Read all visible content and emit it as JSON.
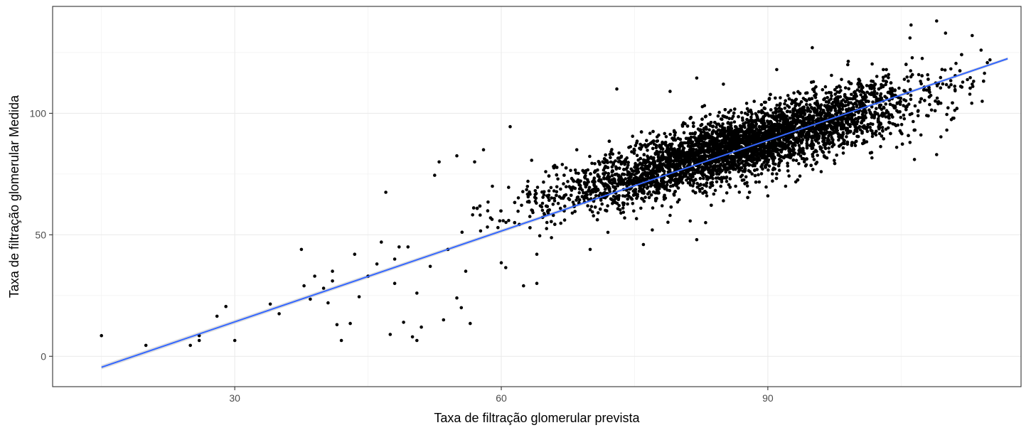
{
  "chart_data": {
    "type": "scatter",
    "title": "",
    "xlabel": "Taxa de filtração glomerular prevista",
    "ylabel": "Taxa de filtração glomerular Medida",
    "xlim": [
      9.5,
      118.5
    ],
    "ylim": [
      -12.5,
      144
    ],
    "x_ticks": [
      30,
      60,
      90
    ],
    "x_tick_labels": [
      "30",
      "60",
      "90"
    ],
    "y_ticks": [
      0,
      50,
      100
    ],
    "y_tick_labels": [
      "0",
      "50",
      "100"
    ],
    "x_minor_ticks": [
      15,
      45,
      75,
      105
    ],
    "y_minor_ticks": [
      25,
      75,
      125
    ],
    "grid": true,
    "legend": "none",
    "series": [
      {
        "kind": "points",
        "color": "#000000",
        "points": [
          [
            15,
            8.5
          ],
          [
            20,
            4.5
          ],
          [
            25,
            4.5
          ],
          [
            26,
            6.5
          ],
          [
            26,
            8.5
          ],
          [
            28,
            16.5
          ],
          [
            29,
            20.5
          ],
          [
            30,
            6.5
          ],
          [
            34,
            21.5
          ],
          [
            35,
            17.5
          ],
          [
            37.5,
            44
          ],
          [
            37.8,
            29
          ],
          [
            38.5,
            23.5
          ],
          [
            39,
            33
          ],
          [
            40,
            28
          ],
          [
            40.5,
            22
          ],
          [
            41,
            31
          ],
          [
            41,
            35
          ],
          [
            41.5,
            13
          ],
          [
            42,
            6.5
          ],
          [
            43,
            13.5
          ],
          [
            43.5,
            42
          ],
          [
            44,
            24.5
          ],
          [
            45,
            33
          ],
          [
            46,
            38
          ],
          [
            46.5,
            47
          ],
          [
            47,
            67.5
          ],
          [
            47.5,
            9
          ],
          [
            48,
            40
          ],
          [
            48,
            30
          ],
          [
            48.5,
            45
          ],
          [
            49,
            14
          ],
          [
            49.5,
            45
          ],
          [
            50,
            8
          ],
          [
            50.5,
            6.5
          ],
          [
            50.5,
            26
          ],
          [
            51,
            12
          ],
          [
            52,
            37
          ],
          [
            52.5,
            74.5
          ],
          [
            53,
            80
          ],
          [
            53.5,
            15
          ],
          [
            54,
            44
          ],
          [
            55,
            24
          ],
          [
            55,
            82.5
          ],
          [
            55.5,
            20
          ],
          [
            56,
            35
          ],
          [
            56.5,
            13.5
          ],
          [
            57,
            80
          ],
          [
            58,
            85
          ],
          [
            59,
            70
          ],
          [
            61,
            94.5
          ],
          [
            60,
            38.5
          ],
          [
            60.5,
            36.5
          ],
          [
            62.5,
            29
          ],
          [
            63,
            72
          ],
          [
            63.5,
            60
          ],
          [
            64,
            42
          ],
          [
            65,
            76
          ],
          [
            66,
            64
          ],
          [
            67,
            71
          ],
          [
            68.5,
            85
          ],
          [
            64,
            30
          ]
        ]
      },
      {
        "kind": "dense-cloud",
        "color": "#000000",
        "x_range": [
          55,
          115
        ],
        "center_line": {
          "slope": 1.0,
          "intercept": -0.5
        },
        "spread": 7.5
      },
      {
        "kind": "outliers-high",
        "color": "#000000",
        "points": [
          [
            73,
            110
          ],
          [
            79,
            109
          ],
          [
            82,
            114.5
          ],
          [
            85,
            112
          ],
          [
            91,
            118
          ],
          [
            93,
            105
          ],
          [
            95,
            127
          ],
          [
            99,
            120
          ],
          [
            103,
            118
          ],
          [
            106,
            131
          ],
          [
            109,
            138
          ],
          [
            110,
            133
          ],
          [
            113,
            132
          ],
          [
            114,
            126
          ],
          [
            115,
            122
          ],
          [
            113,
            112
          ],
          [
            104.5,
            86
          ],
          [
            106,
            88
          ],
          [
            106.5,
            81
          ],
          [
            109,
            83
          ],
          [
            105,
            92
          ],
          [
            88,
            76
          ],
          [
            92,
            70
          ],
          [
            85,
            64
          ],
          [
            82,
            48
          ],
          [
            83,
            55
          ],
          [
            96,
            76
          ],
          [
            90,
            66
          ],
          [
            79,
            58
          ],
          [
            77,
            52
          ],
          [
            72,
            51
          ],
          [
            70,
            44
          ],
          [
            76,
            46
          ]
        ]
      }
    ],
    "fit_line": {
      "color": "#3366ff",
      "band_color": "#b3b3b3",
      "x": [
        15,
        117
      ],
      "y": [
        -4.5,
        122.5
      ]
    }
  }
}
